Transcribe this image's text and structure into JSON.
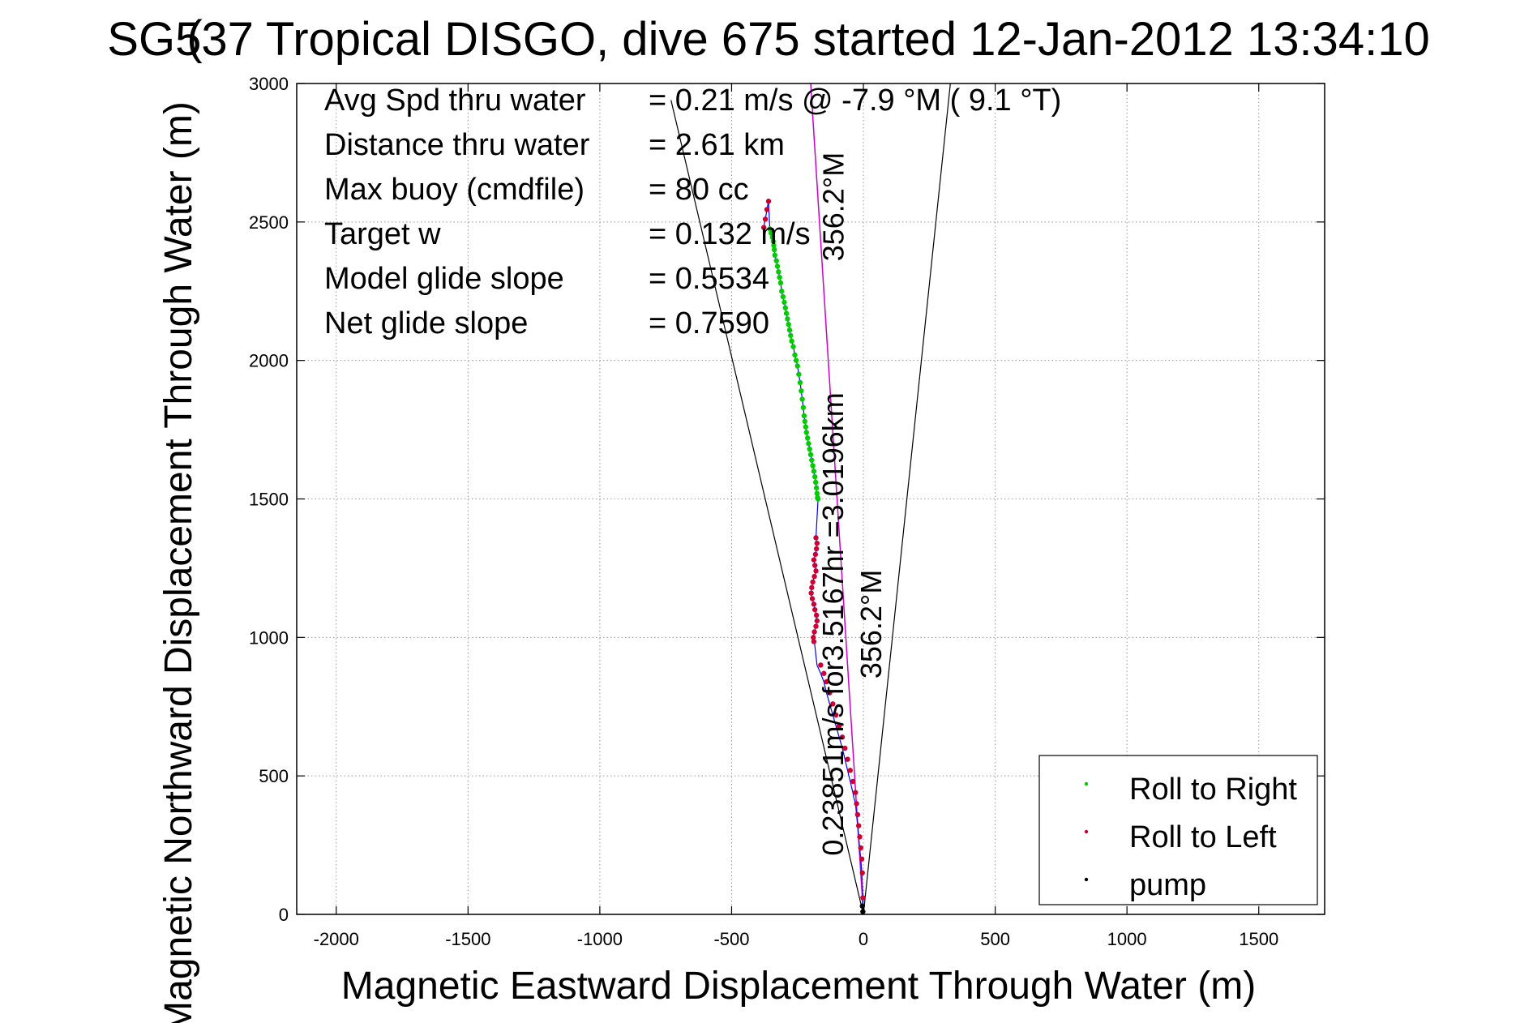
{
  "chart_data": {
    "type": "scatter",
    "title": "SG537 Tropical DISGO, dive 675 started 12-Jan-2012 13:34:10",
    "title_overstrike": "(",
    "xlabel": "Magnetic Eastward Displacement Through Water (m)",
    "ylabel": "Magnetic Northward Displacement Through Water (m)",
    "xlim": [
      -2150,
      1750
    ],
    "ylim": [
      0,
      3000
    ],
    "xticks": [
      -2000,
      -1500,
      -1000,
      -500,
      0,
      500,
      1000,
      1500
    ],
    "xtick_labels": [
      "-2000",
      "-1500",
      "-1000",
      "-500",
      "0",
      "500",
      "1000",
      "1500"
    ],
    "yticks": [
      0,
      500,
      1000,
      1500,
      2000,
      2500,
      3000
    ],
    "ytick_labels": [
      "0",
      "500",
      "1000",
      "1500",
      "2000",
      "2500",
      "3000"
    ],
    "grid": true,
    "legend_position": "bottom-right",
    "stats": [
      {
        "label": "Avg Spd thru water",
        "value": "=  0.21 m/s @  -7.9 °M (  9.1 °T)"
      },
      {
        "label": "Distance thru water",
        "value": "=  2.61 km"
      },
      {
        "label": "Max buoy (cmdfile)",
        "value": "= 80 cc"
      },
      {
        "label": "Target w",
        "value": "= 0.132 m/s"
      },
      {
        "label": "Model glide slope",
        "value": "= 0.5534"
      },
      {
        "label": "Net glide slope",
        "value": "= 0.7590"
      }
    ],
    "annotations": [
      {
        "text": "356.2°M",
        "x": -75,
        "y": 2555
      },
      {
        "text": "0.23851m/s for3.5167hr =3.0196km",
        "x": -77,
        "y": 1048
      },
      {
        "text": "356.2°M",
        "x": 68,
        "y": 1048
      }
    ],
    "cone_lines": [
      {
        "x": [
          0,
          -730
        ],
        "y": [
          0,
          2940
        ]
      },
      {
        "x": [
          0,
          330
        ],
        "y": [
          0,
          3000
        ]
      }
    ],
    "heading_line": {
      "x": [
        0,
        -200
      ],
      "y": [
        0,
        3000
      ]
    },
    "colors": {
      "roll_right": "#00cc00",
      "roll_left": "#cc0033",
      "pump": "#000000",
      "track": "#0000ff",
      "heading": "#cc00cc",
      "cone": "#000000",
      "grid": "#999999"
    },
    "series": [
      {
        "name": "Roll to Right",
        "color": "#00cc00",
        "x": [
          -355,
          -350,
          -345,
          -342,
          -340,
          -338,
          -336,
          -330,
          -326,
          -322,
          -318,
          -314,
          -310,
          -305,
          -300,
          -296,
          -292,
          -288,
          -284,
          -280,
          -276,
          -272,
          -266,
          -260,
          -255,
          -250,
          -245,
          -240,
          -236,
          -232,
          -228,
          -225,
          -222,
          -219,
          -216,
          -212,
          -208,
          -204,
          -200,
          -196,
          -192,
          -188,
          -184,
          -181,
          -178,
          -176,
          -174,
          -172
        ],
        "y": [
          2475,
          2460,
          2445,
          2430,
          2415,
          2400,
          2380,
          2360,
          2340,
          2320,
          2300,
          2280,
          2250,
          2230,
          2210,
          2190,
          2170,
          2150,
          2130,
          2110,
          2090,
          2070,
          2050,
          2020,
          2000,
          1980,
          1950,
          1920,
          1890,
          1860,
          1830,
          1800,
          1780,
          1760,
          1740,
          1720,
          1700,
          1680,
          1660,
          1640,
          1620,
          1600,
          1580,
          1560,
          1540,
          1520,
          1505,
          1500
        ]
      },
      {
        "name": "Roll to Left",
        "color": "#cc0033",
        "x": [
          -378,
          -372,
          -366,
          -360,
          -180,
          -176,
          -178,
          -182,
          -188,
          -184,
          -180,
          -186,
          -192,
          -196,
          -198,
          -194,
          -188,
          -184,
          -178,
          -176,
          -180,
          -186,
          -190,
          -188,
          -162,
          -150,
          -140,
          -128,
          -116,
          -104,
          -92,
          -80,
          -70,
          -60,
          -50,
          -40,
          -30,
          -26,
          -22,
          -18,
          -14,
          -10,
          -6,
          -4,
          -2
        ],
        "y": [
          2480,
          2510,
          2545,
          2575,
          1360,
          1340,
          1320,
          1300,
          1280,
          1260,
          1240,
          1220,
          1200,
          1180,
          1160,
          1140,
          1120,
          1100,
          1080,
          1060,
          1040,
          1020,
          1000,
          985,
          900,
          870,
          840,
          800,
          760,
          720,
          680,
          640,
          600,
          560,
          520,
          480,
          440,
          400,
          360,
          320,
          280,
          240,
          200,
          150,
          60
        ]
      },
      {
        "name": "pump",
        "color": "#000000",
        "x": [
          -4,
          -2
        ],
        "y": [
          30,
          10
        ]
      }
    ],
    "track": {
      "x": [
        0,
        -2,
        -6,
        -10,
        -14,
        -18,
        -22,
        -26,
        -30,
        -36,
        -40,
        -50,
        -60,
        -70,
        -80,
        -92,
        -104,
        -116,
        -128,
        -140,
        -150,
        -162,
        -176,
        -186,
        -190,
        -186,
        -180,
        -176,
        -178,
        -184,
        -188,
        -194,
        -198,
        -196,
        -192,
        -186,
        -180,
        -184,
        -188,
        -182,
        -178,
        -176,
        -180,
        -172,
        -174,
        -176,
        -178,
        -181,
        -184,
        -188,
        -192,
        -196,
        -200,
        -204,
        -208,
        -212,
        -216,
        -219,
        -222,
        -225,
        -228,
        -232,
        -236,
        -240,
        -245,
        -250,
        -255,
        -260,
        -266,
        -272,
        -276,
        -280,
        -284,
        -288,
        -292,
        -296,
        -300,
        -305,
        -310,
        -314,
        -318,
        -322,
        -326,
        -330,
        -336,
        -338,
        -340,
        -342,
        -345,
        -350,
        -355,
        -360,
        -366,
        -372,
        -378
      ],
      "y": [
        0,
        60,
        150,
        200,
        240,
        280,
        320,
        360,
        400,
        420,
        440,
        480,
        520,
        560,
        600,
        640,
        680,
        720,
        760,
        800,
        840,
        870,
        900,
        985,
        1000,
        1020,
        1040,
        1060,
        1080,
        1100,
        1120,
        1140,
        1160,
        1180,
        1200,
        1220,
        1240,
        1260,
        1280,
        1300,
        1320,
        1340,
        1360,
        1500,
        1505,
        1520,
        1540,
        1560,
        1580,
        1600,
        1620,
        1640,
        1660,
        1680,
        1700,
        1720,
        1740,
        1760,
        1780,
        1800,
        1830,
        1860,
        1890,
        1920,
        1950,
        1980,
        2000,
        2020,
        2050,
        2070,
        2090,
        2110,
        2130,
        2150,
        2170,
        2190,
        2210,
        2230,
        2250,
        2280,
        2300,
        2320,
        2340,
        2360,
        2380,
        2400,
        2415,
        2430,
        2445,
        2460,
        2475,
        2575,
        2545,
        2510,
        2480
      ]
    }
  }
}
